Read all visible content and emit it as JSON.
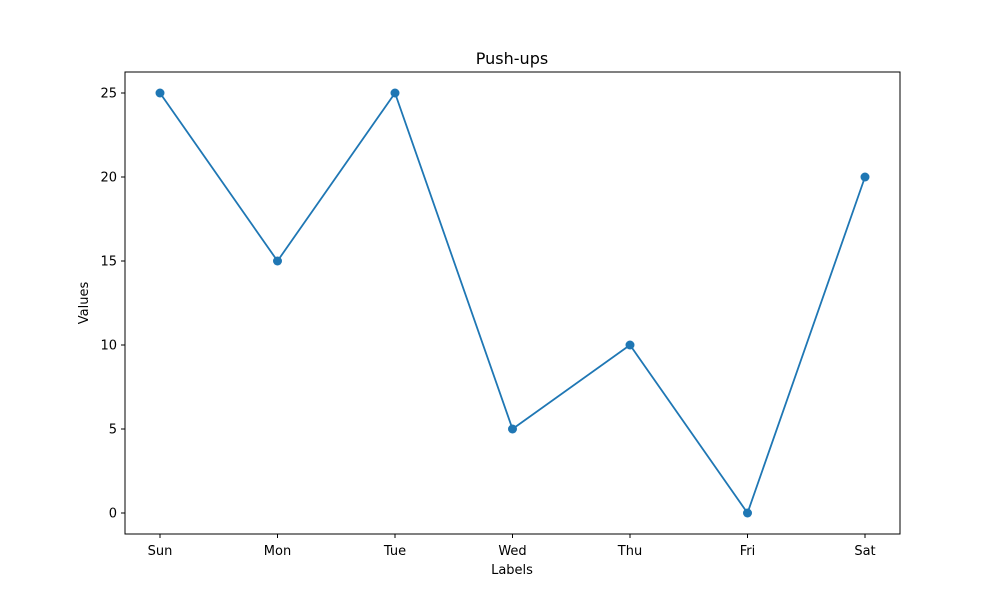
{
  "chart_data": {
    "type": "line",
    "title": "Push-ups",
    "xlabel": "Labels",
    "ylabel": "Values",
    "categories": [
      "Sun",
      "Mon",
      "Tue",
      "Wed",
      "Thu",
      "Fri",
      "Sat"
    ],
    "series": [
      {
        "values": [
          25,
          15,
          25,
          5,
          10,
          0,
          20
        ],
        "color": "#1f77b4"
      }
    ],
    "yticks": [
      0,
      5,
      10,
      15,
      20,
      25
    ],
    "ylim": [
      -1.25,
      26.25
    ],
    "grid": false,
    "legend": "none",
    "markers": "circle"
  }
}
